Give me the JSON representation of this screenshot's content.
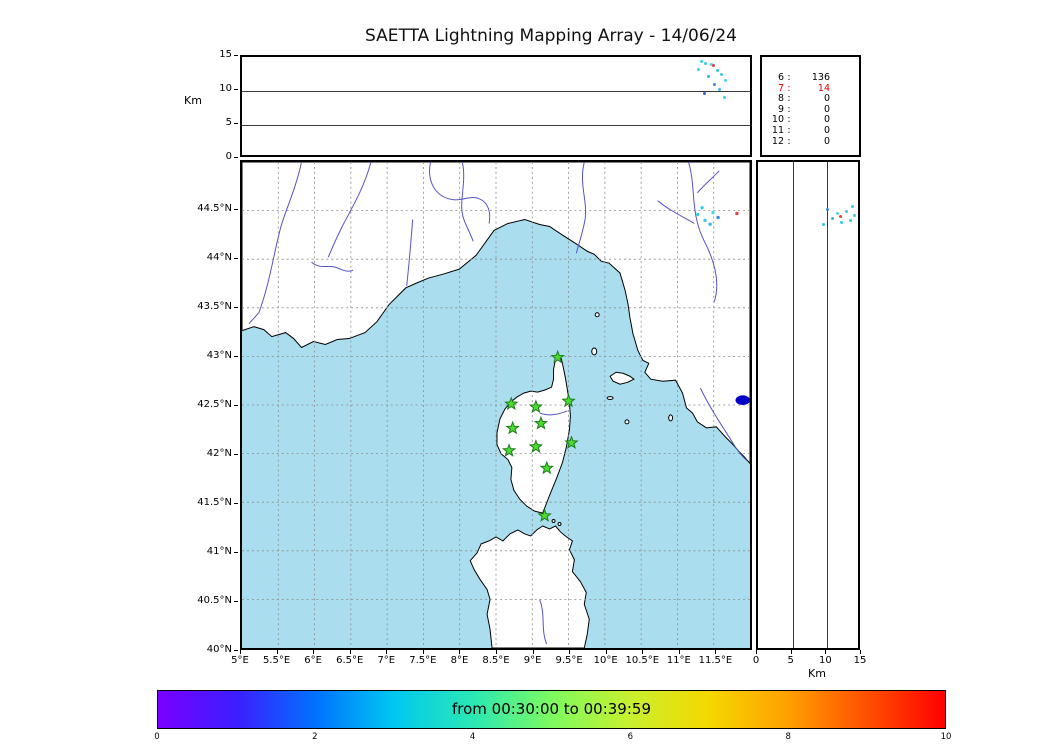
{
  "title": "SAETTA Lightning Mapping Array - 14/06/24",
  "style": {
    "sea": "#aadeef",
    "land": "#ffffff",
    "coast": "#000000",
    "river": "#5553c6",
    "grid": "#8a8a8a",
    "station_fill": "#4cdb30",
    "station_edge": "#1d7a1d",
    "highlight_red": "#dd0000"
  },
  "chart_data": [
    {
      "id": "alt_lon",
      "type": "scatter",
      "title": "Altitude vs longitude (top panel)",
      "ylabel": "Km",
      "xlim": [
        5,
        12
      ],
      "ylim": [
        0,
        15
      ],
      "yticks": [
        15,
        10,
        5,
        0
      ],
      "grid_y": [
        10,
        5
      ],
      "points": [
        {
          "lon": 11.28,
          "km": 14.4,
          "color": "#35d0e0"
        },
        {
          "lon": 11.34,
          "km": 14.1,
          "color": "#35d0e0"
        },
        {
          "lon": 11.42,
          "km": 13.9,
          "color": "#48d8e8"
        },
        {
          "lon": 11.45,
          "km": 13.7,
          "color": "#e84040"
        },
        {
          "lon": 11.24,
          "km": 13.2,
          "color": "#35d0e0"
        },
        {
          "lon": 11.5,
          "km": 13.0,
          "color": "#40c8e8"
        },
        {
          "lon": 11.56,
          "km": 12.5,
          "color": "#35d0e0"
        },
        {
          "lon": 11.38,
          "km": 12.1,
          "color": "#30b8e0"
        },
        {
          "lon": 11.61,
          "km": 11.6,
          "color": "#48d8e8"
        },
        {
          "lon": 11.46,
          "km": 10.9,
          "color": "#3a86d8"
        },
        {
          "lon": 11.53,
          "km": 10.2,
          "color": "#38c0e8"
        },
        {
          "lon": 11.33,
          "km": 9.6,
          "color": "#3a5fd8"
        },
        {
          "lon": 11.59,
          "km": 9.0,
          "color": "#35d0e0"
        }
      ]
    },
    {
      "id": "map",
      "type": "scatter-map",
      "title": "Plan view map (Corsica region)",
      "xlim": [
        5,
        12
      ],
      "ylim": [
        40,
        45
      ],
      "lon_ticks": [
        {
          "v": 5,
          "label": "5°E"
        },
        {
          "v": 5.5,
          "label": "5.5°E"
        },
        {
          "v": 6,
          "label": "6°E"
        },
        {
          "v": 6.5,
          "label": "6.5°E"
        },
        {
          "v": 7,
          "label": "7°E"
        },
        {
          "v": 7.5,
          "label": "7.5°E"
        },
        {
          "v": 8,
          "label": "8°E"
        },
        {
          "v": 8.5,
          "label": "8.5°E"
        },
        {
          "v": 9,
          "label": "9°E"
        },
        {
          "v": 9.5,
          "label": "9.5°E"
        },
        {
          "v": 10,
          "label": "10°E"
        },
        {
          "v": 10.5,
          "label": "10.5°E"
        },
        {
          "v": 11,
          "label": "11°E"
        },
        {
          "v": 11.5,
          "label": "11.5°E"
        }
      ],
      "lat_ticks": [
        {
          "v": 40,
          "label": "40°N"
        },
        {
          "v": 40.5,
          "label": "40.5°N"
        },
        {
          "v": 41,
          "label": "41°N"
        },
        {
          "v": 41.5,
          "label": "41.5°N"
        },
        {
          "v": 42,
          "label": "42°N"
        },
        {
          "v": 42.5,
          "label": "42.5°N"
        },
        {
          "v": 43,
          "label": "43°N"
        },
        {
          "v": 43.5,
          "label": "43.5°N"
        },
        {
          "v": 44,
          "label": "44°N"
        },
        {
          "v": 44.5,
          "label": "44.5°N"
        }
      ],
      "stations": [
        {
          "lon": 9.35,
          "lat": 42.99
        },
        {
          "lon": 8.71,
          "lat": 42.51
        },
        {
          "lon": 9.05,
          "lat": 42.48
        },
        {
          "lon": 9.5,
          "lat": 42.54
        },
        {
          "lon": 8.73,
          "lat": 42.26
        },
        {
          "lon": 9.12,
          "lat": 42.31
        },
        {
          "lon": 8.68,
          "lat": 42.03
        },
        {
          "lon": 9.05,
          "lat": 42.07
        },
        {
          "lon": 9.54,
          "lat": 42.11
        },
        {
          "lon": 9.2,
          "lat": 41.85
        },
        {
          "lon": 9.17,
          "lat": 41.36
        }
      ],
      "points": [
        {
          "lon": 11.28,
          "lat": 44.46,
          "color": "#35d0e0"
        },
        {
          "lon": 11.38,
          "lat": 44.4,
          "color": "#40c8e8"
        },
        {
          "lon": 11.49,
          "lat": 44.48,
          "color": "#48d8e8"
        },
        {
          "lon": 11.34,
          "lat": 44.53,
          "color": "#35d0e0"
        },
        {
          "lon": 11.45,
          "lat": 44.36,
          "color": "#30b8e0"
        },
        {
          "lon": 11.56,
          "lat": 44.43,
          "color": "#3a86d8"
        },
        {
          "lon": 11.82,
          "lat": 44.47,
          "color": "#e84040"
        }
      ],
      "cluster": {
        "lon": 11.9,
        "lat": 42.55,
        "rx_deg": 0.1,
        "ry_deg": 0.05,
        "color": "#0000c8"
      }
    },
    {
      "id": "alt_lat",
      "type": "scatter",
      "title": "Altitude vs latitude (right panel)",
      "xlabel": "Km",
      "xlim": [
        0,
        15
      ],
      "ylim": [
        40,
        45
      ],
      "xticks": [
        0,
        5,
        10,
        15
      ],
      "grid_x": [
        5,
        10
      ],
      "points": [
        {
          "km": 13.9,
          "lat": 44.45,
          "color": "#35d0e0"
        },
        {
          "km": 13.6,
          "lat": 44.55,
          "color": "#35d0e0"
        },
        {
          "km": 13.3,
          "lat": 44.4,
          "color": "#35d0e0"
        },
        {
          "km": 12.7,
          "lat": 44.5,
          "color": "#40c8e8"
        },
        {
          "km": 12.1,
          "lat": 44.38,
          "color": "#35d0e0"
        },
        {
          "km": 11.9,
          "lat": 44.44,
          "color": "#e84040"
        },
        {
          "km": 11.4,
          "lat": 44.47,
          "color": "#48d8e8"
        },
        {
          "km": 10.7,
          "lat": 44.42,
          "color": "#30b8e0"
        },
        {
          "km": 10.0,
          "lat": 44.52,
          "color": "#3a86d8"
        },
        {
          "km": 9.4,
          "lat": 44.36,
          "color": "#38c0e8"
        }
      ]
    },
    {
      "id": "station_counts",
      "type": "table",
      "title": "Sources per contributing station count",
      "columns": [
        "stations",
        "count"
      ],
      "rows": [
        {
          "stations": "6",
          "count": "136",
          "highlight": false
        },
        {
          "stations": "7",
          "count": "14",
          "highlight": true
        },
        {
          "stations": "8",
          "count": "0",
          "highlight": false
        },
        {
          "stations": "9",
          "count": "0",
          "highlight": false
        },
        {
          "stations": "10",
          "count": "0",
          "highlight": false
        },
        {
          "stations": "11",
          "count": "0",
          "highlight": false
        },
        {
          "stations": "12",
          "count": "0",
          "highlight": false
        }
      ]
    },
    {
      "id": "colorbar",
      "type": "colorbar",
      "label": "from 00:30:00 to 00:39:59",
      "vmin": 0,
      "vmax": 10,
      "ticks": [
        0,
        2,
        4,
        6,
        8,
        10
      ],
      "gradient": [
        "#7a00ff",
        "#3c1eff",
        "#0072ff",
        "#00c8f0",
        "#2ae8b4",
        "#7dfa5f",
        "#c8f02e",
        "#f5d800",
        "#ffa000",
        "#ff5000",
        "#ff0000"
      ]
    }
  ]
}
